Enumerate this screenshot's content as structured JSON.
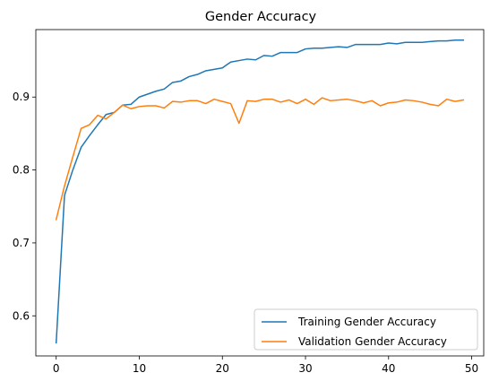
{
  "chart_data": {
    "type": "line",
    "title": "Gender Accuracy",
    "xlabel": "",
    "ylabel": "",
    "xlim": [
      -2.45,
      51.45
    ],
    "ylim": [
      0.545,
      0.9925
    ],
    "xticks": [
      0,
      10,
      20,
      30,
      40,
      50
    ],
    "yticks": [
      0.6,
      0.7,
      0.8,
      0.9
    ],
    "grid": false,
    "legend_position": "lower-right",
    "x": [
      0,
      1,
      2,
      3,
      4,
      5,
      6,
      7,
      8,
      9,
      10,
      11,
      12,
      13,
      14,
      15,
      16,
      17,
      18,
      19,
      20,
      21,
      22,
      23,
      24,
      25,
      26,
      27,
      28,
      29,
      30,
      31,
      32,
      33,
      34,
      35,
      36,
      37,
      38,
      39,
      40,
      41,
      42,
      43,
      44,
      45,
      46,
      47,
      48,
      49
    ],
    "series": [
      {
        "name": "Training Gender Accuracy",
        "color": "#1f77b4",
        "values": [
          0.563,
          0.765,
          0.8,
          0.831,
          0.847,
          0.862,
          0.876,
          0.879,
          0.889,
          0.89,
          0.9,
          0.904,
          0.908,
          0.911,
          0.92,
          0.922,
          0.928,
          0.931,
          0.936,
          0.938,
          0.94,
          0.948,
          0.95,
          0.952,
          0.951,
          0.957,
          0.956,
          0.961,
          0.961,
          0.961,
          0.966,
          0.967,
          0.967,
          0.968,
          0.969,
          0.968,
          0.972,
          0.972,
          0.972,
          0.972,
          0.974,
          0.973,
          0.975,
          0.975,
          0.975,
          0.976,
          0.977,
          0.977,
          0.978,
          0.978
        ]
      },
      {
        "name": "Validation Gender Accuracy",
        "color": "#ff7f0e",
        "values": [
          0.732,
          0.778,
          0.818,
          0.857,
          0.862,
          0.875,
          0.87,
          0.879,
          0.889,
          0.884,
          0.887,
          0.888,
          0.888,
          0.885,
          0.894,
          0.893,
          0.895,
          0.895,
          0.891,
          0.897,
          0.894,
          0.891,
          0.864,
          0.895,
          0.894,
          0.897,
          0.897,
          0.893,
          0.896,
          0.891,
          0.897,
          0.89,
          0.899,
          0.895,
          0.896,
          0.897,
          0.895,
          0.892,
          0.895,
          0.888,
          0.892,
          0.893,
          0.896,
          0.895,
          0.893,
          0.89,
          0.888,
          0.897,
          0.894,
          0.896
        ]
      }
    ]
  }
}
